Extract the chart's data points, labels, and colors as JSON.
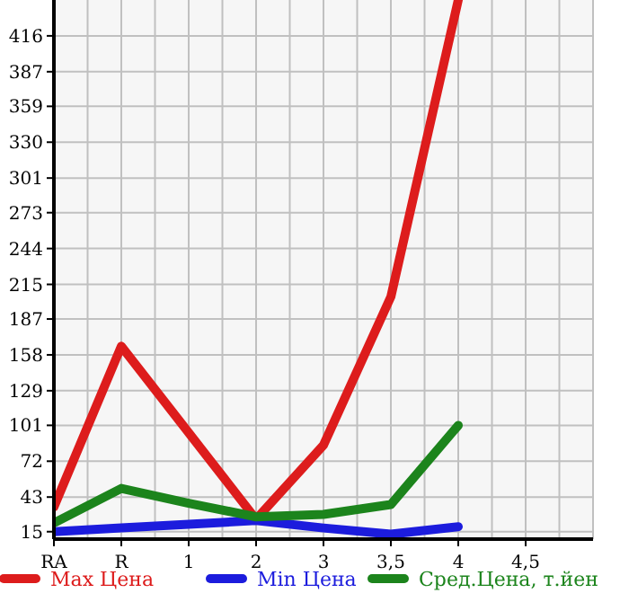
{
  "chart_data": {
    "type": "line",
    "categories": [
      "RA",
      "R",
      "1",
      "2",
      "3",
      "3,5",
      "4",
      "4,5"
    ],
    "series": [
      {
        "name": "Max Цена",
        "color": "#dd1c1c",
        "values": [
          35,
          165,
          95,
          25,
          85,
          205,
          445,
          null
        ]
      },
      {
        "name": "Min Цена",
        "color": "#1c1cdd",
        "values": [
          15,
          18,
          21,
          24,
          18,
          13,
          19,
          null
        ]
      },
      {
        "name": "Сред.Цена, т.йен",
        "color": "#1c841c",
        "values": [
          22,
          50,
          38,
          27,
          29,
          37,
          101,
          null
        ]
      }
    ],
    "ylim": [
      9,
      445
    ],
    "yticks": [
      15,
      43,
      72,
      101,
      129,
      158,
      187,
      215,
      244,
      273,
      301,
      330,
      359,
      387,
      416
    ],
    "grid": true,
    "legend": "bottom",
    "marker": "none",
    "line_style": "solid"
  }
}
